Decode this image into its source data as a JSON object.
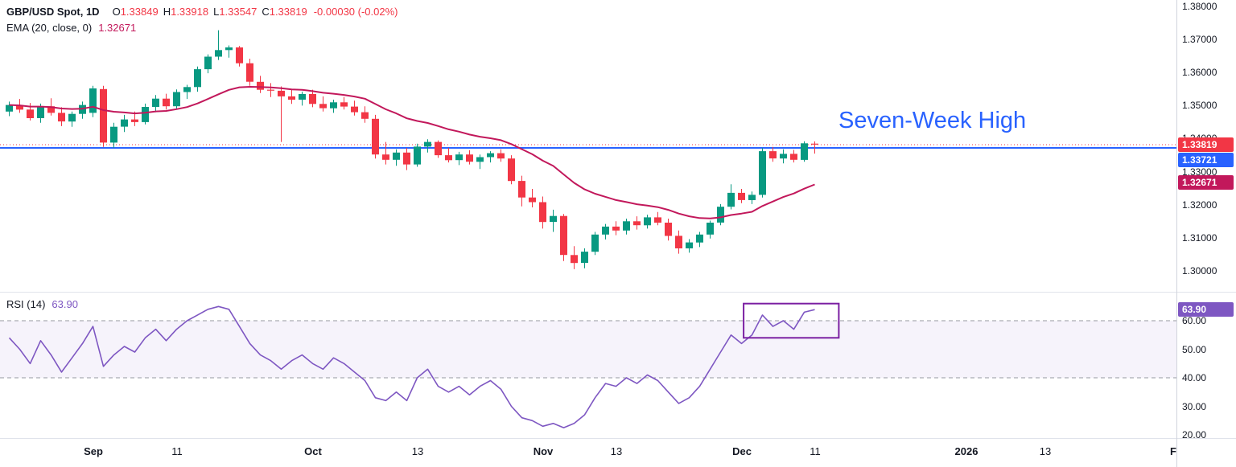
{
  "header": {
    "symbol": "GBP/USD Spot, 1D",
    "ohlc": {
      "o_label": "O",
      "o": "1.33849",
      "h_label": "H",
      "h": "1.33918",
      "l_label": "L",
      "l": "1.33547",
      "c_label": "C",
      "c": "1.33819"
    },
    "change": "-0.00030 (-0.02%)",
    "ema_indicator": {
      "label": "EMA (20, close, 0)",
      "value": "1.32671"
    }
  },
  "rsi_panel": {
    "label": "RSI (14)",
    "value": "63.90"
  },
  "annotation": {
    "text": "Seven-Week High",
    "color": "#2962FF"
  },
  "colors": {
    "green": "#089981",
    "red": "#F23645",
    "blue": "#2962FF",
    "ema": "#C2185B",
    "rsi": "#7E57C2",
    "rsi_box": "#7B1FA2",
    "band_line": "#9598A1",
    "text": "#131722"
  },
  "price_axis": {
    "labels": [
      "1.38000",
      "1.37000",
      "1.36000",
      "1.35000",
      "1.34000",
      "1.33000",
      "1.32000",
      "1.31000",
      "1.30000"
    ],
    "badges": {
      "current": {
        "text": "1.33819",
        "bg": "#F23645",
        "price": 1.33819
      },
      "level": {
        "text": "1.33721",
        "bg": "#2962FF",
        "price": 1.33721
      },
      "ema": {
        "text": "1.32671",
        "bg": "#C2185B",
        "price": 1.32671
      }
    }
  },
  "rsi_axis": {
    "labels": [
      "60.00",
      "50.00",
      "40.00",
      "30.00",
      "20.00"
    ],
    "badge": {
      "text": "63.90",
      "bg": "#7E57C2",
      "value": 63.9
    }
  },
  "time_axis": {
    "ticks": [
      {
        "label": "Sep",
        "i": 8,
        "bold": true
      },
      {
        "label": "11",
        "i": 16
      },
      {
        "label": "Oct",
        "i": 29,
        "bold": true
      },
      {
        "label": "13",
        "i": 39
      },
      {
        "label": "Nov",
        "i": 51,
        "bold": true
      },
      {
        "label": "13",
        "i": 58
      },
      {
        "label": "Dec",
        "i": 70,
        "bold": true
      },
      {
        "label": "11",
        "i": 77
      },
      {
        "label": "2026",
        "i": 91.5,
        "bold": true
      },
      {
        "label": "13",
        "i": 99
      },
      {
        "label": "F",
        "i": 111.3,
        "bold": true
      }
    ]
  },
  "chart_data": [
    {
      "type": "candlestick",
      "title": "GBP/USD Spot, 1D",
      "y_range": [
        1.3,
        1.38
      ],
      "current_price": 1.33819,
      "level_line": 1.33721,
      "ema_period": 20,
      "ema_last": 1.32671,
      "ohlc": [
        [
          1.3482,
          1.3512,
          1.3468,
          1.3502
        ],
        [
          1.3502,
          1.352,
          1.3478,
          1.3488
        ],
        [
          1.3488,
          1.3508,
          1.3455,
          1.3462
        ],
        [
          1.3462,
          1.3506,
          1.3448,
          1.3498
        ],
        [
          1.3498,
          1.3522,
          1.347,
          1.3478
        ],
        [
          1.3478,
          1.3495,
          1.3438,
          1.3452
        ],
        [
          1.3452,
          1.3482,
          1.3436,
          1.3475
        ],
        [
          1.3475,
          1.3512,
          1.346,
          1.3502
        ],
        [
          1.3478,
          1.356,
          1.3465,
          1.3552
        ],
        [
          1.355,
          1.356,
          1.3375,
          1.3388
        ],
        [
          1.3388,
          1.3448,
          1.3372,
          1.3436
        ],
        [
          1.3436,
          1.3472,
          1.342,
          1.3458
        ],
        [
          1.3458,
          1.3482,
          1.3438,
          1.345
        ],
        [
          1.345,
          1.3506,
          1.3443,
          1.3496
        ],
        [
          1.3496,
          1.3532,
          1.348,
          1.3521
        ],
        [
          1.3521,
          1.3536,
          1.3488,
          1.3498
        ],
        [
          1.3498,
          1.3549,
          1.349,
          1.3541
        ],
        [
          1.3541,
          1.3563,
          1.352,
          1.3556
        ],
        [
          1.3556,
          1.3618,
          1.3542,
          1.361
        ],
        [
          1.361,
          1.3655,
          1.3598,
          1.3648
        ],
        [
          1.3648,
          1.3728,
          1.3638,
          1.3668
        ],
        [
          1.3668,
          1.3682,
          1.3645,
          1.3676
        ],
        [
          1.3676,
          1.368,
          1.3618,
          1.3628
        ],
        [
          1.3628,
          1.3642,
          1.356,
          1.3572
        ],
        [
          1.3572,
          1.359,
          1.3538,
          1.3548
        ],
        [
          1.3548,
          1.3568,
          1.3526,
          1.3545
        ],
        [
          1.3545,
          1.3558,
          1.339,
          1.3528
        ],
        [
          1.3528,
          1.355,
          1.3505,
          1.3518
        ],
        [
          1.3518,
          1.3542,
          1.35,
          1.3535
        ],
        [
          1.3535,
          1.3548,
          1.3495,
          1.3505
        ],
        [
          1.3505,
          1.3528,
          1.3482,
          1.3492
        ],
        [
          1.3492,
          1.3518,
          1.3478,
          1.351
        ],
        [
          1.351,
          1.3526,
          1.3488,
          1.3497
        ],
        [
          1.3497,
          1.3515,
          1.347,
          1.348
        ],
        [
          1.348,
          1.3498,
          1.3448,
          1.346
        ],
        [
          1.346,
          1.3472,
          1.334,
          1.3352
        ],
        [
          1.3352,
          1.339,
          1.3322,
          1.3336
        ],
        [
          1.3336,
          1.3368,
          1.3318,
          1.3358
        ],
        [
          1.3358,
          1.3372,
          1.3305,
          1.3322
        ],
        [
          1.3322,
          1.3385,
          1.3315,
          1.3376
        ],
        [
          1.3376,
          1.3398,
          1.3358,
          1.339
        ],
        [
          1.339,
          1.3395,
          1.3342,
          1.335
        ],
        [
          1.335,
          1.3372,
          1.3328,
          1.3335
        ],
        [
          1.3335,
          1.336,
          1.332,
          1.3352
        ],
        [
          1.3352,
          1.3365,
          1.3322,
          1.333
        ],
        [
          1.333,
          1.3352,
          1.3308,
          1.3344
        ],
        [
          1.3344,
          1.3362,
          1.3328,
          1.3356
        ],
        [
          1.3356,
          1.3368,
          1.333,
          1.334
        ],
        [
          1.334,
          1.335,
          1.3262,
          1.3272
        ],
        [
          1.3272,
          1.3288,
          1.3195,
          1.3222
        ],
        [
          1.3222,
          1.3248,
          1.3192,
          1.3208
        ],
        [
          1.3208,
          1.3225,
          1.3128,
          1.3148
        ],
        [
          1.3148,
          1.3185,
          1.3118,
          1.3166
        ],
        [
          1.3166,
          1.3172,
          1.303,
          1.3048
        ],
        [
          1.3048,
          1.3075,
          1.3005,
          1.3024
        ],
        [
          1.3024,
          1.3068,
          1.3008,
          1.3058
        ],
        [
          1.3058,
          1.3118,
          1.3048,
          1.311
        ],
        [
          1.311,
          1.3142,
          1.3095,
          1.3134
        ],
        [
          1.3134,
          1.315,
          1.3108,
          1.3122
        ],
        [
          1.3122,
          1.3158,
          1.311,
          1.315
        ],
        [
          1.315,
          1.3165,
          1.3125,
          1.3138
        ],
        [
          1.3138,
          1.317,
          1.3128,
          1.3162
        ],
        [
          1.3162,
          1.3178,
          1.3138,
          1.3146
        ],
        [
          1.3146,
          1.3158,
          1.3092,
          1.3106
        ],
        [
          1.3106,
          1.3122,
          1.3052,
          1.3068
        ],
        [
          1.3068,
          1.3096,
          1.3055,
          1.3086
        ],
        [
          1.3086,
          1.3118,
          1.3072,
          1.311
        ],
        [
          1.311,
          1.3152,
          1.3098,
          1.3146
        ],
        [
          1.3146,
          1.3202,
          1.3138,
          1.3194
        ],
        [
          1.3194,
          1.3262,
          1.3186,
          1.3236
        ],
        [
          1.3236,
          1.3248,
          1.3205,
          1.3214
        ],
        [
          1.3214,
          1.324,
          1.3202,
          1.323
        ],
        [
          1.323,
          1.3372,
          1.3222,
          1.3362
        ],
        [
          1.3362,
          1.3375,
          1.333,
          1.334
        ],
        [
          1.334,
          1.3368,
          1.3325,
          1.3354
        ],
        [
          1.3354,
          1.3366,
          1.3328,
          1.3336
        ],
        [
          1.3336,
          1.3392,
          1.333,
          1.3386
        ],
        [
          1.33849,
          1.33918,
          1.33547,
          1.33819
        ]
      ]
    },
    {
      "type": "line",
      "name": "RSI (14)",
      "last": 63.9,
      "band": [
        40,
        60
      ],
      "y_range": [
        15,
        70
      ],
      "box": {
        "i1": 70.2,
        "i2": 79.3,
        "top": 66,
        "bottom": 54
      },
      "values": [
        54,
        50,
        45,
        53,
        48,
        42,
        47,
        52,
        58,
        44,
        48,
        51,
        49,
        54,
        57,
        53,
        57,
        60,
        62,
        64,
        65,
        64,
        58,
        52,
        48,
        46,
        43,
        46,
        48,
        45,
        43,
        47,
        45,
        42,
        39,
        33,
        32,
        35,
        32,
        40,
        43,
        37,
        35,
        37,
        34,
        37,
        39,
        36,
        30,
        26,
        25,
        23,
        24,
        22.5,
        24,
        27,
        33,
        38,
        37,
        40,
        38,
        41,
        39,
        35,
        31,
        33,
        37,
        43,
        49,
        55,
        52,
        55,
        62,
        58,
        60,
        57,
        63,
        63.9
      ]
    }
  ]
}
